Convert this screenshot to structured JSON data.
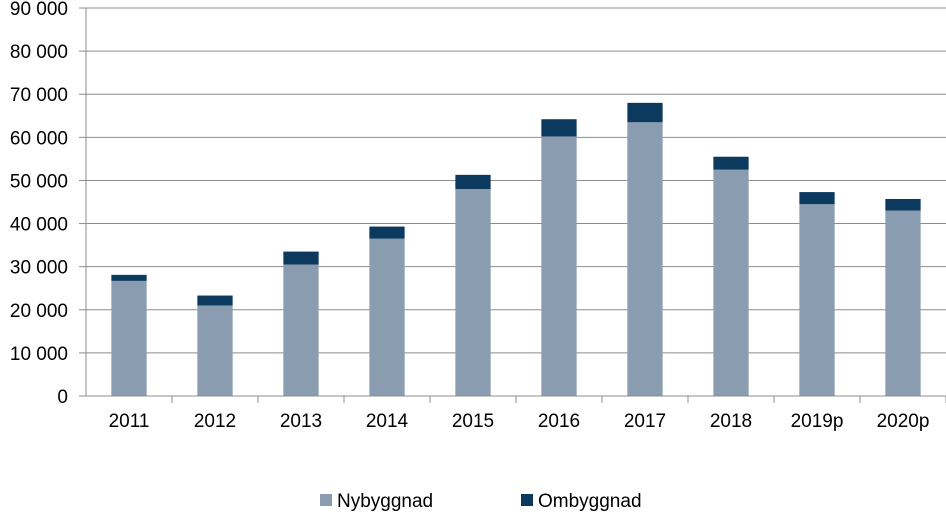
{
  "chart_data": {
    "type": "bar",
    "stacked": true,
    "categories": [
      "2011",
      "2012",
      "2013",
      "2014",
      "2015",
      "2016",
      "2017",
      "2018",
      "2019p",
      "2020p"
    ],
    "series": [
      {
        "name": "Nybyggnad",
        "color": "#8a9caf",
        "values": [
          26700,
          21000,
          30500,
          36500,
          48000,
          60200,
          63500,
          52500,
          44500,
          43000
        ]
      },
      {
        "name": "Ombyggnad",
        "color": "#0b3a5e",
        "values": [
          1400,
          2300,
          3000,
          2800,
          3300,
          4000,
          4500,
          3000,
          2800,
          2700
        ]
      }
    ],
    "ylim": [
      0,
      90000
    ],
    "yticks": [
      0,
      10000,
      20000,
      30000,
      40000,
      50000,
      60000,
      70000,
      80000,
      90000
    ],
    "ytick_labels": [
      "0",
      "10 000",
      "20 000",
      "30 000",
      "40 000",
      "50 000",
      "60 000",
      "70 000",
      "80 000",
      "90 000"
    ],
    "grid": true,
    "legend_position": "bottom",
    "title": "",
    "xlabel": "",
    "ylabel": ""
  }
}
